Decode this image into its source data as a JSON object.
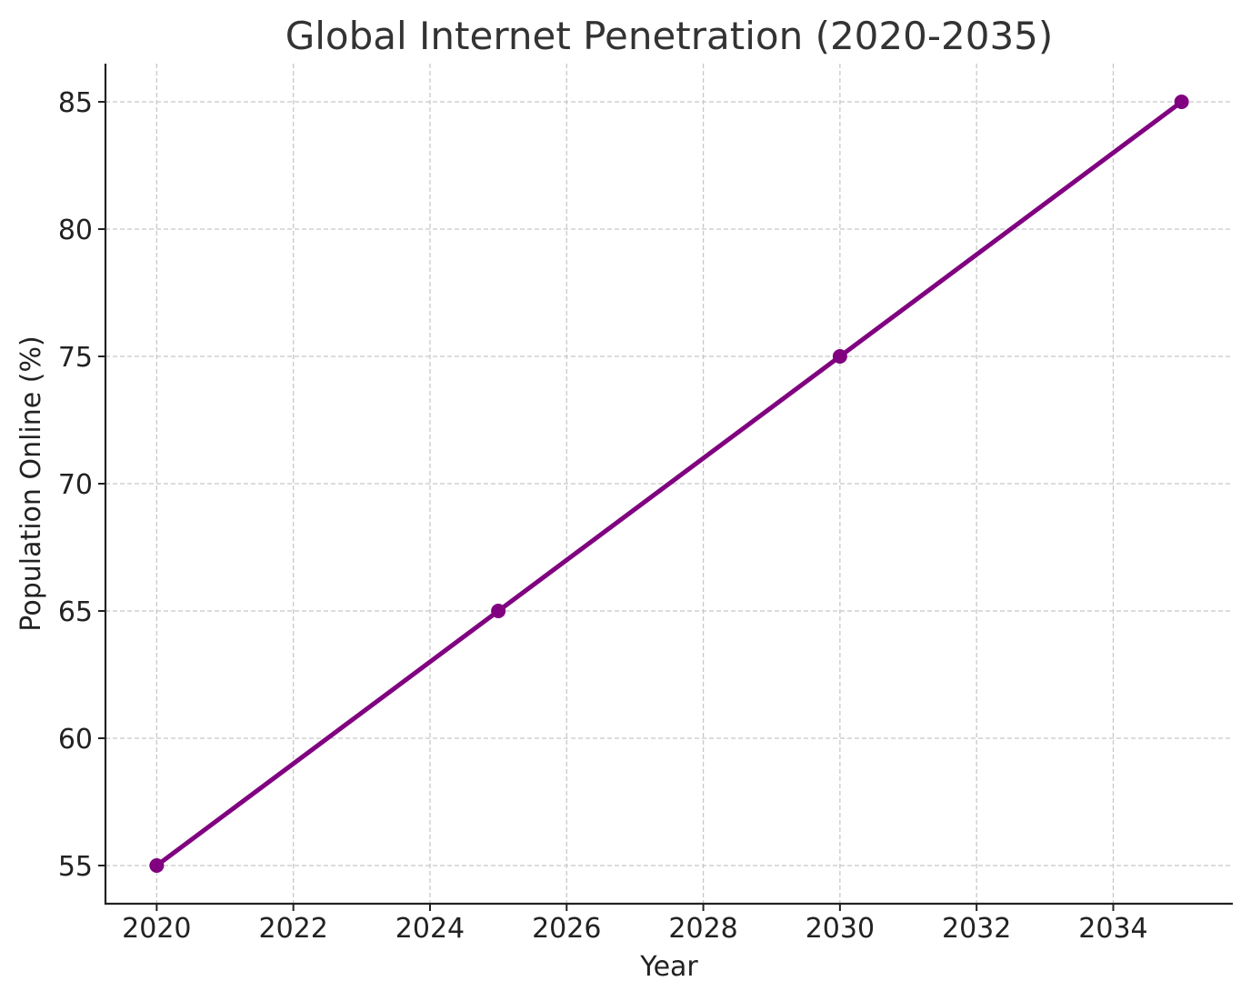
{
  "chart_data": {
    "type": "line",
    "title": "Global Internet Penetration (2020-2035)",
    "xlabel": "Year",
    "ylabel": "Population Online (%)",
    "x": [
      2020,
      2025,
      2030,
      2035
    ],
    "series": [
      {
        "values": [
          55,
          65,
          75,
          85
        ],
        "color": "#800080"
      }
    ],
    "xlim": [
      2019.25,
      2035.75
    ],
    "ylim": [
      53.5,
      86.5
    ],
    "xticks": [
      2020,
      2022,
      2024,
      2026,
      2028,
      2030,
      2032,
      2034
    ],
    "yticks": [
      55,
      60,
      65,
      70,
      75,
      80,
      85
    ],
    "grid": true,
    "marker": "circle"
  }
}
